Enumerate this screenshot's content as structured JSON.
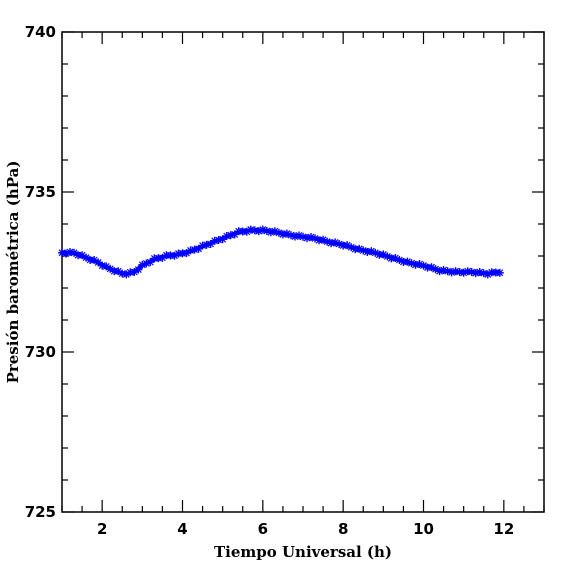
{
  "chart_data": {
    "type": "line",
    "title": "",
    "xlabel": "Tiempo Universal (h)",
    "ylabel": "Presión barométrica (hPa)",
    "xlim": [
      1,
      13
    ],
    "ylim": [
      725,
      740
    ],
    "xticks": [
      2,
      4,
      6,
      8,
      10,
      12
    ],
    "yticks": [
      725,
      730,
      735,
      740
    ],
    "x_minor_step": 0.5,
    "y_minor_step": 1,
    "grid": false,
    "legend": "none",
    "series": [
      {
        "color": "#0000ff",
        "marker": "star",
        "x": [
          1.0,
          1.3,
          1.6,
          1.9,
          2.1,
          2.3,
          2.5,
          2.65,
          2.8,
          3.0,
          3.3,
          3.6,
          3.9,
          4.2,
          4.5,
          4.8,
          5.1,
          5.4,
          5.7,
          6.0,
          6.3,
          6.7,
          7.0,
          7.3,
          7.6,
          8.0,
          8.4,
          8.8,
          9.2,
          9.6,
          10.0,
          10.4,
          10.8,
          11.2,
          11.6,
          11.9
        ],
        "y": [
          733.1,
          733.1,
          732.95,
          732.8,
          732.65,
          732.55,
          732.45,
          732.45,
          732.5,
          732.7,
          732.9,
          733.0,
          733.05,
          733.15,
          733.3,
          733.45,
          733.6,
          733.75,
          733.8,
          733.8,
          733.75,
          733.65,
          733.6,
          733.55,
          733.45,
          733.35,
          733.2,
          733.1,
          732.95,
          732.8,
          732.7,
          732.55,
          732.5,
          732.5,
          732.45,
          732.5
        ]
      }
    ]
  }
}
